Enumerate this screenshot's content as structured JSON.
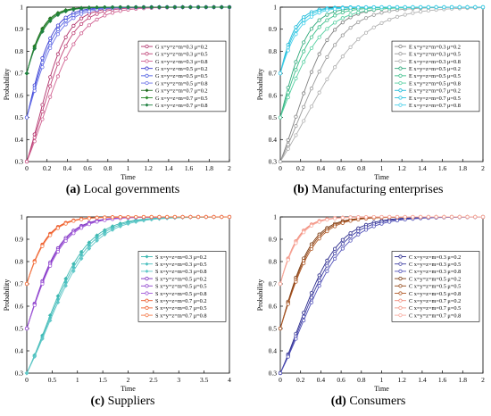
{
  "panels": [
    {
      "caption_letter": "(a)",
      "caption_text": "Local governments",
      "chart_data": {
        "type": "line",
        "xlabel": "Time",
        "ylabel": "Probability",
        "xlim": [
          0,
          2
        ],
        "ylim": [
          0.3,
          1
        ],
        "xticks": [
          "0",
          "0.2",
          "0.4",
          "0.6",
          "0.8",
          "1",
          "1.2",
          "1.4",
          "1.6",
          "1.8",
          "2"
        ],
        "yticks": [
          "0.3",
          "0.4",
          "0.5",
          "0.6",
          "0.7",
          "0.8",
          "0.9",
          "1"
        ],
        "grid": false,
        "legend_position": "center-right",
        "series": [
          {
            "name": "G x=y=z=m=0.3 μ=0.2",
            "y0": 0.3,
            "k": 7.0,
            "color": "#b0306a",
            "marker": "circle"
          },
          {
            "name": "G x=y=z=m=0.3 μ=0.5",
            "y0": 0.3,
            "k": 6.2,
            "color": "#c04478",
            "marker": "circle"
          },
          {
            "name": "G x=y=z=m=0.3 μ=0.8",
            "y0": 0.3,
            "k": 5.3,
            "color": "#d06090",
            "marker": "circle"
          },
          {
            "name": "G x=y=z=m=0.5 μ=0.2",
            "y0": 0.5,
            "k": 7.8,
            "color": "#3a3ad0",
            "marker": "circle"
          },
          {
            "name": "G x=y=z=m=0.5 μ=0.5",
            "y0": 0.5,
            "k": 7.1,
            "color": "#4b5ce0",
            "marker": "circle"
          },
          {
            "name": "G x=y=z=m=0.5 μ=0.8",
            "y0": 0.5,
            "k": 6.4,
            "color": "#6a70e8",
            "marker": "circle"
          },
          {
            "name": "G x=y=z=m=0.7 μ=0.2",
            "y0": 0.7,
            "k": 9.0,
            "color": "#1f6b1f",
            "marker": "diamond"
          },
          {
            "name": "G x=y=z=m=0.7 μ=0.5",
            "y0": 0.7,
            "k": 8.5,
            "color": "#2a8a2a",
            "marker": "diamond"
          },
          {
            "name": "G x=y=z=m=0.7 μ=0.8",
            "y0": 0.7,
            "k": 8.0,
            "color": "#1e8040",
            "marker": "diamond"
          }
        ]
      }
    },
    {
      "caption_letter": "(b)",
      "caption_text": "Manufacturing enterprises",
      "chart_data": {
        "type": "line",
        "xlabel": "Time",
        "ylabel": "Probability",
        "xlim": [
          0,
          2
        ],
        "ylim": [
          0.3,
          1
        ],
        "xticks": [
          "0",
          "0.2",
          "0.4",
          "0.6",
          "0.8",
          "1",
          "1.2",
          "1.4",
          "1.6",
          "1.8",
          "2"
        ],
        "yticks": [
          "0.3",
          "0.4",
          "0.5",
          "0.6",
          "0.7",
          "0.8",
          "0.9",
          "1"
        ],
        "grid": false,
        "legend_position": "center-right",
        "series": [
          {
            "name": "E x=y=z=m=0.3 μ=0.2",
            "y0": 0.3,
            "k": 5.6,
            "color": "#808080",
            "marker": "circle"
          },
          {
            "name": "E x=y=z=m=0.3 μ=0.5",
            "y0": 0.3,
            "k": 4.5,
            "color": "#9a9a9a",
            "marker": "circle"
          },
          {
            "name": "E x=y=z=m=0.3 μ=0.8",
            "y0": 0.3,
            "k": 3.4,
            "color": "#b0b0b0",
            "marker": "circle"
          },
          {
            "name": "E x=y=z=m=0.5 μ=0.2",
            "y0": 0.5,
            "k": 7.2,
            "color": "#2fa87a",
            "marker": "circle"
          },
          {
            "name": "E x=y=z=m=0.5 μ=0.5",
            "y0": 0.5,
            "k": 6.0,
            "color": "#3cbf8a",
            "marker": "circle"
          },
          {
            "name": "E x=y=z=m=0.5 μ=0.8",
            "y0": 0.5,
            "k": 4.8,
            "color": "#55cfa0",
            "marker": "circle"
          },
          {
            "name": "E x=y=z=m=0.7 μ=0.2",
            "y0": 0.7,
            "k": 9.5,
            "color": "#18b8d8",
            "marker": "circle"
          },
          {
            "name": "E x=y=z=m=0.7 μ=0.5",
            "y0": 0.7,
            "k": 8.4,
            "color": "#28c4e0",
            "marker": "circle"
          },
          {
            "name": "E x=y=z=m=0.7 μ=0.8",
            "y0": 0.7,
            "k": 7.3,
            "color": "#48d0ea",
            "marker": "circle"
          }
        ]
      }
    },
    {
      "caption_letter": "(c)",
      "caption_text": "Suppliers",
      "chart_data": {
        "type": "line",
        "xlabel": "Time",
        "ylabel": "Probability",
        "xlim": [
          0,
          4
        ],
        "ylim": [
          0.3,
          1
        ],
        "xticks": [
          "0",
          "0.5",
          "1",
          "1.5",
          "2",
          "2.5",
          "3",
          "3.5",
          "4"
        ],
        "yticks": [
          "0.3",
          "0.4",
          "0.5",
          "0.6",
          "0.7",
          "0.8",
          "0.9",
          "1"
        ],
        "grid": false,
        "legend_position": "center-right",
        "series": [
          {
            "name": "S x=y=z=m=0.3 μ=0.2",
            "y0": 0.3,
            "k": 2.35,
            "color": "#3cb8b0",
            "marker": "diamond"
          },
          {
            "name": "S x=y=z=m=0.3 μ=0.5",
            "y0": 0.3,
            "k": 2.25,
            "color": "#4cc0c0",
            "marker": "diamond"
          },
          {
            "name": "S x=y=z=m=0.3 μ=0.8",
            "y0": 0.3,
            "k": 2.15,
            "color": "#60c8c8",
            "marker": "diamond"
          },
          {
            "name": "S x=y=z=m=0.5 μ=0.2",
            "y0": 0.5,
            "k": 2.95,
            "color": "#7a2bc0",
            "marker": "circle"
          },
          {
            "name": "S x=y=z=m=0.5 μ=0.5",
            "y0": 0.5,
            "k": 2.85,
            "color": "#8c40cc",
            "marker": "circle"
          },
          {
            "name": "S x=y=z=m=0.5 μ=0.8",
            "y0": 0.5,
            "k": 2.75,
            "color": "#a058d8",
            "marker": "circle"
          },
          {
            "name": "S x=y=z=m=0.7 μ=0.2",
            "y0": 0.7,
            "k": 3.6,
            "color": "#e85020",
            "marker": "circle"
          },
          {
            "name": "S x=y=z=m=0.7 μ=0.5",
            "y0": 0.7,
            "k": 3.5,
            "color": "#f06030",
            "marker": "circle"
          },
          {
            "name": "S x=y=z=m=0.7 μ=0.8",
            "y0": 0.7,
            "k": 3.4,
            "color": "#f47a48",
            "marker": "circle"
          }
        ]
      }
    },
    {
      "caption_letter": "(d)",
      "caption_text": "Consumers",
      "chart_data": {
        "type": "line",
        "xlabel": "Time",
        "ylabel": "Probability",
        "xlim": [
          0,
          2
        ],
        "ylim": [
          0.3,
          1
        ],
        "xticks": [
          "0",
          "0.2",
          "0.4",
          "0.6",
          "0.8",
          "1",
          "1.2",
          "1.4",
          "1.6",
          "1.8",
          "2"
        ],
        "yticks": [
          "0.3",
          "0.4",
          "0.5",
          "0.6",
          "0.7",
          "0.8",
          "0.9",
          "1"
        ],
        "grid": false,
        "legend_position": "center-right",
        "series": [
          {
            "name": "C x=y=z=m=0.3 μ=0.2",
            "y0": 0.3,
            "k": 4.9,
            "color": "#2a2a8c",
            "marker": "circle"
          },
          {
            "name": "C x=y=z=m=0.3 μ=0.5",
            "y0": 0.3,
            "k": 4.6,
            "color": "#3c3ca0",
            "marker": "circle"
          },
          {
            "name": "C x=y=z=m=0.3 μ=0.8",
            "y0": 0.3,
            "k": 4.3,
            "color": "#5050b8",
            "marker": "circle"
          },
          {
            "name": "C x=y=z=m=0.5 μ=0.2",
            "y0": 0.5,
            "k": 6.4,
            "color": "#7a3a10",
            "marker": "circle"
          },
          {
            "name": "C x=y=z=m=0.5 μ=0.5",
            "y0": 0.5,
            "k": 6.1,
            "color": "#944818",
            "marker": "circle"
          },
          {
            "name": "C x=y=z=m=0.5 μ=0.8",
            "y0": 0.5,
            "k": 5.8,
            "color": "#b05a28",
            "marker": "circle"
          },
          {
            "name": "C x=y=z=m=0.7 μ=0.2",
            "y0": 0.7,
            "k": 8.2,
            "color": "#f08878",
            "marker": "circle"
          },
          {
            "name": "C x=y=z=m=0.7 μ=0.5",
            "y0": 0.7,
            "k": 7.9,
            "color": "#f49a8a",
            "marker": "circle"
          },
          {
            "name": "C x=y=z=m=0.7 μ=0.8",
            "y0": 0.7,
            "k": 7.6,
            "color": "#f8aca0",
            "marker": "circle"
          }
        ]
      }
    }
  ]
}
